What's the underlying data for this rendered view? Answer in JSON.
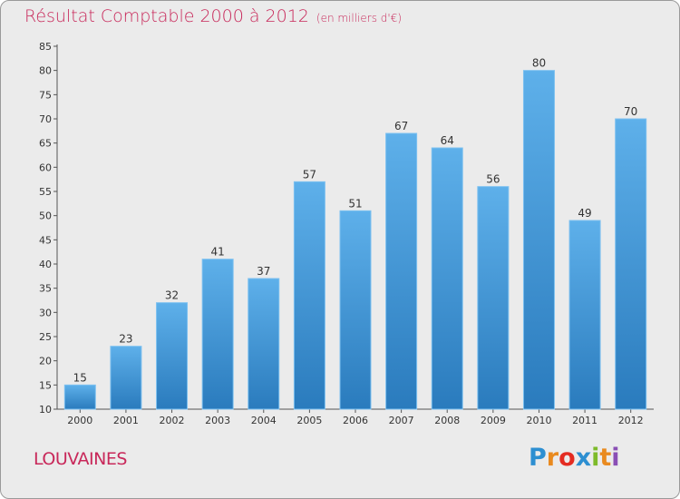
{
  "chart_data": {
    "type": "bar",
    "title": "Résultat Comptable 2000 à 2012",
    "subtitle": "(en milliers d'€)",
    "categories": [
      "2000",
      "2001",
      "2002",
      "2003",
      "2004",
      "2005",
      "2006",
      "2007",
      "2008",
      "2009",
      "2010",
      "2011",
      "2012"
    ],
    "values": [
      15,
      23,
      32,
      41,
      37,
      57,
      51,
      67,
      64,
      56,
      80,
      49,
      70
    ],
    "ylim": [
      10,
      85
    ],
    "yticks": [
      10,
      15,
      20,
      25,
      30,
      35,
      40,
      45,
      50,
      55,
      60,
      65,
      70,
      75,
      80,
      85
    ],
    "xlabel": "",
    "ylabel": "",
    "grid": false,
    "bar_color": "#4d9fdb"
  },
  "commune": "LOUVAINES",
  "logo": {
    "letters": [
      "P",
      "r",
      "o",
      "x",
      "i",
      "t",
      "i"
    ]
  },
  "colors": {
    "title": "#c8285a",
    "background": "#ebebeb",
    "bar_top": "#5eb0ea",
    "bar_bottom": "#2a7bbd"
  }
}
